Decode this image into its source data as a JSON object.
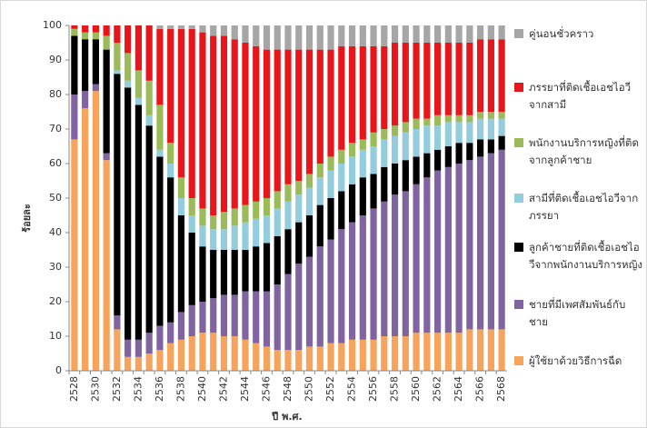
{
  "chart_data": {
    "type": "stacked_bar",
    "ylabel": "ร้อยละ",
    "xlabel": "ปี พ.ศ.",
    "categories": [
      "2528",
      null,
      "2530",
      null,
      "2532",
      null,
      "2534",
      null,
      "2536",
      null,
      "2538",
      null,
      "2540",
      null,
      "2542",
      null,
      "2544",
      null,
      "2546",
      null,
      "2548",
      null,
      "2550",
      null,
      "2552",
      null,
      "2554",
      null,
      "2556",
      null,
      "2558",
      null,
      "2560",
      null,
      "2562",
      null,
      "2564",
      null,
      "2566",
      null,
      "2568"
    ],
    "ylim": [
      0,
      100
    ],
    "yticks": [
      0,
      10,
      20,
      30,
      40,
      50,
      60,
      70,
      80,
      90,
      100
    ],
    "grid": false,
    "legend": "right",
    "series": [
      {
        "name": "ผู้ใช้ยาด้วยวิธีการฉีด",
        "color": "#f7a35c",
        "values": [
          67,
          76,
          81,
          61,
          12,
          4,
          4,
          5,
          6,
          8,
          9,
          10,
          11,
          11,
          10,
          10,
          9,
          8,
          7,
          6,
          6,
          6,
          7,
          7,
          8,
          8,
          9,
          9,
          9,
          10,
          10,
          10,
          11,
          11,
          11,
          11,
          11,
          12,
          12,
          12,
          12
        ]
      },
      {
        "name": "ชายที่มีเพศสัมพันธ์กับชาย",
        "color": "#8064a2",
        "values": [
          13,
          5,
          2,
          2,
          4,
          5,
          5,
          6,
          7,
          6,
          8,
          9,
          9,
          10,
          12,
          12,
          14,
          15,
          16,
          19,
          22,
          25,
          26,
          29,
          30,
          33,
          34,
          36,
          38,
          39,
          41,
          42,
          43,
          45,
          47,
          48,
          49,
          49,
          50,
          51,
          52
        ]
      },
      {
        "name": "ลูกค้าชายที่ติดเชื้อเอชไอวีจากพนักงานบริการหญิง",
        "color": "#000000",
        "values": [
          17,
          15,
          13,
          30,
          70,
          73,
          68,
          60,
          49,
          42,
          28,
          21,
          16,
          14,
          13,
          13,
          12,
          13,
          14,
          14,
          13,
          12,
          12,
          12,
          12,
          11,
          11,
          11,
          10,
          10,
          9,
          9,
          8,
          7,
          6,
          6,
          6,
          5,
          5,
          4,
          4
        ]
      },
      {
        "name": "สามีที่ติดเชื้อเอชไอวีจากภรรยา",
        "color": "#93cddd",
        "values": [
          0,
          0,
          0,
          0,
          1,
          2,
          2,
          3,
          2,
          4,
          5,
          5,
          6,
          6,
          6,
          7,
          8,
          8,
          8,
          8,
          8,
          8,
          8,
          8,
          8,
          8,
          8,
          8,
          8,
          8,
          8,
          8,
          8,
          8,
          7,
          7,
          6,
          6,
          6,
          6,
          5
        ]
      },
      {
        "name": "พนักงานบริการหญิงที่ติดจากลูกค้าชาย",
        "color": "#9bbb59",
        "values": [
          2,
          2,
          2,
          4,
          8,
          8,
          8,
          10,
          13,
          6,
          6,
          5,
          5,
          4,
          5,
          5,
          5,
          5,
          5,
          5,
          5,
          4,
          4,
          4,
          4,
          4,
          4,
          3,
          4,
          3,
          3,
          3,
          3,
          2,
          3,
          2,
          2,
          2,
          2,
          2,
          2
        ]
      },
      {
        "name": "ภรรยาที่ติดเชื้อเอชไอวีจากสามี",
        "color": "#e8161b",
        "values": [
          1,
          2,
          2,
          3,
          5,
          8,
          13,
          16,
          22,
          33,
          43,
          49,
          51,
          52,
          51,
          49,
          47,
          45,
          43,
          41,
          39,
          38,
          36,
          33,
          31,
          30,
          28,
          27,
          25,
          24,
          24,
          23,
          22,
          22,
          21,
          21,
          21,
          21,
          21,
          21,
          21
        ]
      },
      {
        "name": "คู่นอนชั่วคราว",
        "color": "#a6a6a6",
        "values": [
          0,
          0,
          0,
          0,
          0,
          0,
          0,
          0,
          1,
          1,
          1,
          1,
          2,
          3,
          3,
          4,
          5,
          6,
          7,
          7,
          7,
          7,
          7,
          7,
          7,
          6,
          6,
          6,
          6,
          6,
          5,
          5,
          5,
          5,
          5,
          5,
          5,
          5,
          4,
          4,
          4
        ]
      }
    ]
  }
}
